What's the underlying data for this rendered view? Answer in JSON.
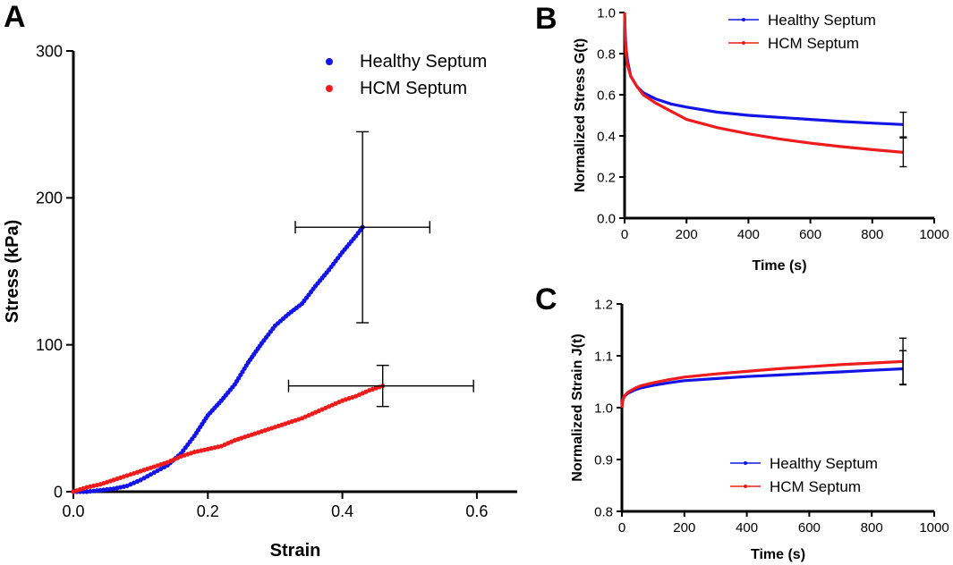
{
  "colors": {
    "healthy": "#1414e6",
    "hcm": "#ee1c1c",
    "axis": "#000000",
    "errorbar": "#000000"
  },
  "chart_data": [
    {
      "panel": "A",
      "type": "scatter",
      "title": "",
      "xlabel": "Strain",
      "ylabel": "Stress (kPa)",
      "xlim": [
        0,
        0.66
      ],
      "ylim": [
        0,
        300
      ],
      "xticks": [
        0.0,
        0.2,
        0.4,
        0.6
      ],
      "xtick_labels": [
        "0.0",
        "0.2",
        "0.4",
        "0.6"
      ],
      "yticks": [
        0,
        100,
        200,
        300
      ],
      "ytick_labels": [
        "0",
        "100",
        "200",
        "300"
      ],
      "legend_position": "top-right",
      "series": [
        {
          "name": "Healthy Septum",
          "color": "#1414e6",
          "x": [
            0.0,
            0.02,
            0.04,
            0.06,
            0.08,
            0.1,
            0.12,
            0.14,
            0.16,
            0.18,
            0.2,
            0.22,
            0.24,
            0.26,
            0.28,
            0.3,
            0.32,
            0.34,
            0.36,
            0.38,
            0.4,
            0.42,
            0.43
          ],
          "y": [
            0,
            0,
            1,
            2,
            4,
            8,
            13,
            18,
            26,
            38,
            52,
            62,
            73,
            88,
            101,
            113,
            121,
            128,
            140,
            151,
            163,
            174,
            180
          ],
          "error_end": {
            "x": 0.43,
            "y": 180,
            "x_minus": 0.1,
            "x_plus": 0.1,
            "y_minus": 65,
            "y_plus": 65
          }
        },
        {
          "name": "HCM Septum",
          "color": "#ee1c1c",
          "x": [
            0.0,
            0.02,
            0.04,
            0.06,
            0.08,
            0.1,
            0.12,
            0.14,
            0.16,
            0.18,
            0.2,
            0.22,
            0.24,
            0.26,
            0.28,
            0.3,
            0.32,
            0.34,
            0.36,
            0.38,
            0.4,
            0.42,
            0.44,
            0.46
          ],
          "y": [
            0,
            3,
            5,
            8,
            11,
            14,
            17,
            20,
            24,
            27,
            29,
            31,
            35,
            38,
            41,
            44,
            47,
            50,
            54,
            58,
            62,
            65,
            69,
            72
          ],
          "error_end": {
            "x": 0.46,
            "y": 72,
            "x_minus": 0.14,
            "x_plus": 0.135,
            "y_minus": 14,
            "y_plus": 14
          }
        }
      ]
    },
    {
      "panel": "B",
      "type": "line",
      "title": "",
      "xlabel": "Time (s)",
      "ylabel": "Normalized Stress  G(t)",
      "xlim": [
        0,
        1000
      ],
      "ylim": [
        0.0,
        1.0
      ],
      "xticks": [
        0,
        200,
        400,
        600,
        800,
        1000
      ],
      "xtick_labels": [
        "0",
        "200",
        "400",
        "600",
        "800",
        "1000"
      ],
      "yticks": [
        0.0,
        0.2,
        0.4,
        0.6,
        0.8,
        1.0
      ],
      "ytick_labels": [
        "0.0",
        "0.2",
        "0.4",
        "0.6",
        "0.8",
        "1.0"
      ],
      "legend_position": "top-right",
      "series": [
        {
          "name": "Healthy Septum",
          "color": "#1414e6",
          "x": [
            0,
            2,
            5,
            10,
            20,
            40,
            60,
            100,
            150,
            200,
            300,
            400,
            500,
            600,
            700,
            800,
            900
          ],
          "y": [
            1.0,
            0.9,
            0.82,
            0.76,
            0.69,
            0.64,
            0.61,
            0.58,
            0.555,
            0.54,
            0.515,
            0.5,
            0.49,
            0.48,
            0.47,
            0.462,
            0.455
          ],
          "error_end": {
            "x": 900,
            "y": 0.455,
            "y_minus": 0.06,
            "y_plus": 0.06
          }
        },
        {
          "name": "HCM Septum",
          "color": "#ee1c1c",
          "x": [
            0,
            2,
            5,
            10,
            20,
            40,
            60,
            100,
            150,
            200,
            300,
            400,
            500,
            600,
            700,
            800,
            900
          ],
          "y": [
            1.0,
            0.88,
            0.8,
            0.74,
            0.69,
            0.64,
            0.6,
            0.56,
            0.52,
            0.48,
            0.44,
            0.41,
            0.385,
            0.365,
            0.348,
            0.333,
            0.32
          ],
          "error_end": {
            "x": 900,
            "y": 0.32,
            "y_minus": 0.07,
            "y_plus": 0.07
          }
        }
      ]
    },
    {
      "panel": "C",
      "type": "line",
      "title": "",
      "xlabel": "Time (s)",
      "ylabel": "Normalized Strain  J(t)",
      "xlim": [
        0,
        1000
      ],
      "ylim": [
        0.8,
        1.2
      ],
      "xticks": [
        0,
        200,
        400,
        600,
        800,
        1000
      ],
      "xtick_labels": [
        "0",
        "200",
        "400",
        "600",
        "800",
        "1000"
      ],
      "yticks": [
        0.8,
        0.9,
        1.0,
        1.1,
        1.2
      ],
      "ytick_labels": [
        "0.8",
        "0.9",
        "1.0",
        "1.1",
        "1.2"
      ],
      "legend_position": "bottom-right",
      "series": [
        {
          "name": "Healthy Septum",
          "color": "#1414e6",
          "x": [
            0,
            2,
            5,
            10,
            20,
            40,
            60,
            100,
            150,
            200,
            300,
            400,
            500,
            600,
            700,
            800,
            900
          ],
          "y": [
            1.0,
            1.012,
            1.018,
            1.023,
            1.028,
            1.034,
            1.038,
            1.043,
            1.048,
            1.052,
            1.056,
            1.06,
            1.063,
            1.066,
            1.069,
            1.072,
            1.075
          ],
          "error_end": {
            "x": 900,
            "y": 1.075,
            "y_minus": 0.03,
            "y_plus": 0.035
          }
        },
        {
          "name": "HCM Septum",
          "color": "#ee1c1c",
          "x": [
            0,
            2,
            5,
            10,
            20,
            40,
            60,
            100,
            150,
            200,
            300,
            400,
            500,
            600,
            700,
            800,
            900
          ],
          "y": [
            1.0,
            1.013,
            1.019,
            1.024,
            1.03,
            1.037,
            1.042,
            1.048,
            1.054,
            1.059,
            1.065,
            1.07,
            1.075,
            1.079,
            1.083,
            1.086,
            1.089
          ],
          "error_end": {
            "x": 900,
            "y": 1.089,
            "y_minus": 0.045,
            "y_plus": 0.045
          }
        }
      ]
    }
  ]
}
